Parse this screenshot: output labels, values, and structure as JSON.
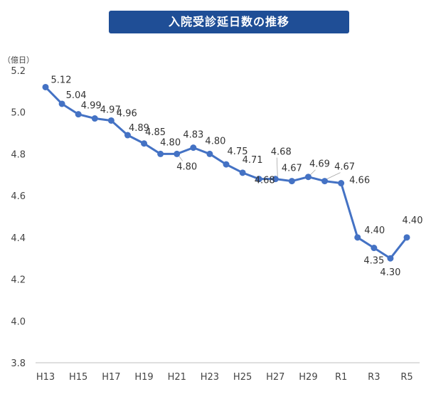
{
  "chart_data": {
    "type": "line",
    "title": "入院受診延日数の推移",
    "unit_label": "（億日）",
    "x": [
      "H13",
      "H14",
      "H15",
      "H16",
      "H17",
      "H18",
      "H19",
      "H20",
      "H21",
      "H22",
      "H23",
      "H24",
      "H25",
      "H26",
      "H27",
      "H28",
      "H29",
      "H30",
      "R1",
      "R2",
      "R3",
      "R4",
      "R5"
    ],
    "x_tick_labels": [
      "H13",
      "H15",
      "H17",
      "H19",
      "H21",
      "H23",
      "H25",
      "H27",
      "H29",
      "R1",
      "R3",
      "R5"
    ],
    "series": [
      {
        "values": [
          5.12,
          5.04,
          4.99,
          4.97,
          4.96,
          4.89,
          4.85,
          4.8,
          4.8,
          4.83,
          4.8,
          4.75,
          4.71,
          4.68,
          4.68,
          4.67,
          4.69,
          4.67,
          4.66,
          4.4,
          4.35,
          4.3,
          4.4
        ]
      }
    ],
    "data_labels": [
      "5.12",
      "5.04",
      "4.99",
      "4.97",
      "4.96",
      "4.89",
      "4.85",
      "4.80",
      "4.80",
      "4.83",
      "4.80",
      "4.75",
      "4.71",
      "4.68",
      "4.68",
      "4.67",
      "4.69",
      "4.67",
      "4.66",
      "4.40",
      "4.35",
      "4.30",
      "4.40"
    ],
    "y_tick_labels": [
      "3.8",
      "4.0",
      "4.2",
      "4.4",
      "4.6",
      "4.8",
      "5.0",
      "5.2"
    ],
    "ylim": [
      3.8,
      5.2
    ],
    "grid": false,
    "colors": {
      "line": "#4472c4",
      "title_bg": "#1f4e96",
      "axis": "#bfbfbf"
    }
  }
}
